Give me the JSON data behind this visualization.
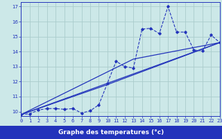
{
  "background_color": "#cce8e8",
  "grid_color": "#aacccc",
  "line_color": "#2233bb",
  "xlabel": "Graphe des temperatures (°c)",
  "xlabel_bg": "#2233bb",
  "xlabel_fg": "#ffffff",
  "xlim": [
    0,
    23
  ],
  "ylim": [
    9.7,
    17.3
  ],
  "ytick_vals": [
    10,
    11,
    12,
    13,
    14,
    15,
    16,
    17
  ],
  "xtick_vals": [
    0,
    1,
    2,
    3,
    4,
    5,
    6,
    7,
    8,
    9,
    10,
    11,
    12,
    13,
    14,
    15,
    16,
    17,
    18,
    19,
    20,
    21,
    22,
    23
  ],
  "data_x": [
    0,
    1,
    2,
    3,
    4,
    5,
    6,
    7,
    8,
    9,
    10,
    11,
    12,
    13,
    14,
    15,
    16,
    17,
    18,
    19,
    20,
    21,
    22,
    23
  ],
  "data_y": [
    9.8,
    9.85,
    10.1,
    10.2,
    10.2,
    10.15,
    10.2,
    9.9,
    10.05,
    10.45,
    11.9,
    13.35,
    13.0,
    12.9,
    15.5,
    15.55,
    15.2,
    17.0,
    15.3,
    15.3,
    14.1,
    14.05,
    15.1,
    14.6
  ],
  "trend1_x": [
    0,
    23
  ],
  "trend1_y": [
    9.8,
    14.6
  ],
  "trend2_x": [
    0,
    13,
    23
  ],
  "trend2_y": [
    9.8,
    13.5,
    14.6
  ],
  "trend3_x": [
    0,
    10,
    23
  ],
  "trend3_y": [
    9.8,
    11.8,
    14.6
  ]
}
